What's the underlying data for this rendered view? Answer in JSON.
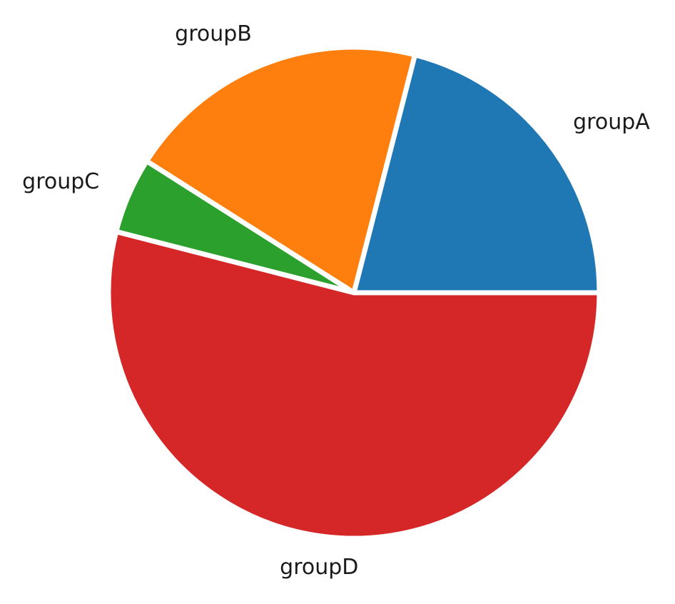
{
  "chart_data": {
    "type": "pie",
    "categories": [
      "groupA",
      "groupB",
      "groupC",
      "groupD"
    ],
    "values": [
      21,
      20,
      5,
      54
    ],
    "colors": [
      "#1f77b4",
      "#ff7f0e",
      "#2ca02c",
      "#d62728"
    ],
    "start_angle": 0,
    "direction": "counterclockwise",
    "title": "",
    "legend": "none"
  }
}
